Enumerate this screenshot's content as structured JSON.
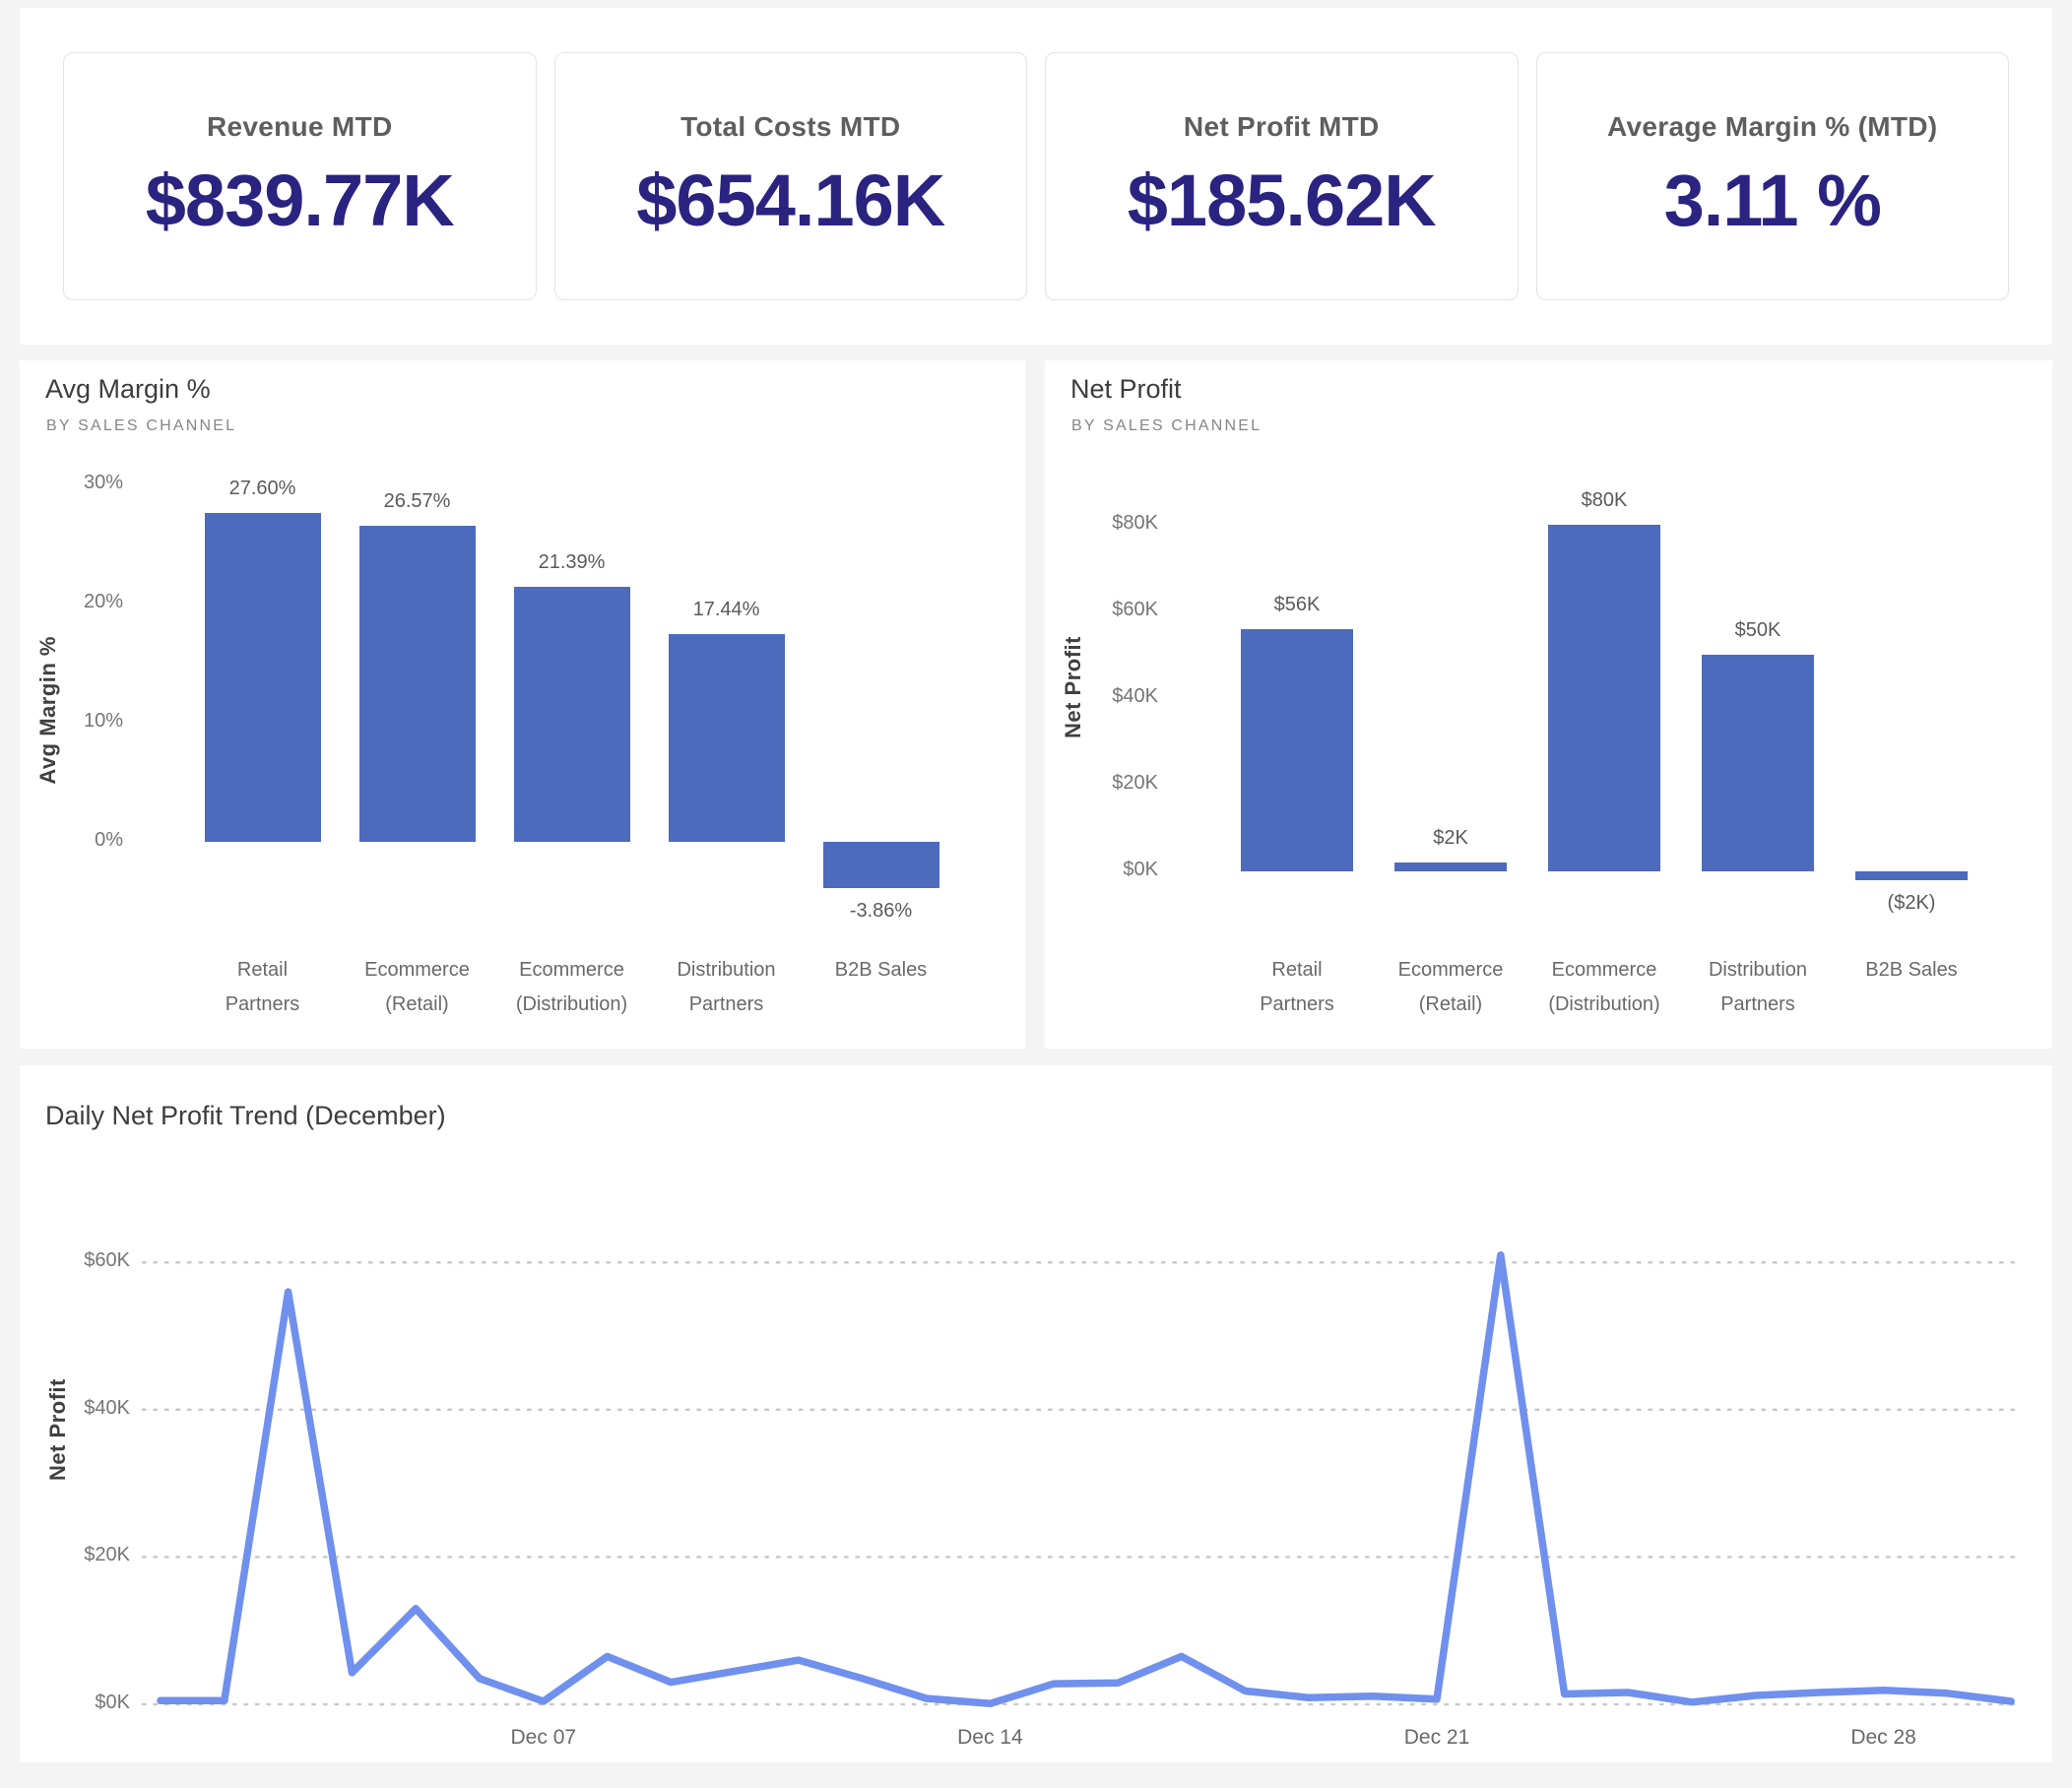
{
  "kpi_cards": [
    {
      "label": "Revenue MTD",
      "value": "$839.77K"
    },
    {
      "label": "Total Costs MTD",
      "value": "$654.16K"
    },
    {
      "label": "Net Profit MTD",
      "value": "$185.62K"
    },
    {
      "label": "Average Margin % (MTD)",
      "value": "3.11 %"
    }
  ],
  "colors": {
    "bar_fill": "#4D6BBC",
    "line_stroke": "#7090EE",
    "kpi_value": "#2A2380",
    "grid_dots": "#C9C9C9",
    "page_background": "#F4F4F4"
  },
  "chart_data": [
    {
      "type": "bar",
      "title": "Avg Margin %",
      "subtitle": "BY SALES CHANNEL",
      "ylabel": "Avg Margin %",
      "categories": [
        "Retail Partners",
        "Ecommerce (Retail)",
        "Ecommerce (Distribution)",
        "Distribution Partners",
        "B2B Sales"
      ],
      "category_lines": [
        [
          "Retail",
          "Partners"
        ],
        [
          "Ecommerce",
          "(Retail)"
        ],
        [
          "Ecommerce",
          "(Distribution)"
        ],
        [
          "Distribution",
          "Partners"
        ],
        [
          "B2B Sales"
        ]
      ],
      "values": [
        27.6,
        26.57,
        21.39,
        17.44,
        -3.86
      ],
      "data_labels": [
        "27.60%",
        "26.57%",
        "21.39%",
        "17.44%",
        "-3.86%"
      ],
      "yticks": [
        0,
        10,
        20,
        30
      ],
      "ytick_labels": [
        "0%",
        "10%",
        "20%",
        "30%"
      ],
      "ylim": [
        -8,
        32
      ],
      "grid": false,
      "legend": false
    },
    {
      "type": "bar",
      "title": "Net Profit",
      "subtitle": "BY SALES CHANNEL",
      "ylabel": "Net Profit",
      "categories": [
        "Retail Partners",
        "Ecommerce (Retail)",
        "Ecommerce (Distribution)",
        "Distribution Partners",
        "B2B Sales"
      ],
      "category_lines": [
        [
          "Retail",
          "Partners"
        ],
        [
          "Ecommerce",
          "(Retail)"
        ],
        [
          "Ecommerce",
          "(Distribution)"
        ],
        [
          "Distribution",
          "Partners"
        ],
        [
          "B2B Sales"
        ]
      ],
      "values": [
        56,
        2,
        80,
        50,
        -2
      ],
      "values_unit": "$K",
      "data_labels": [
        "$56K",
        "$2K",
        "$80K",
        "$50K",
        "($2K)"
      ],
      "yticks": [
        0,
        20,
        40,
        60,
        80
      ],
      "ytick_labels": [
        "$0K",
        "$20K",
        "$40K",
        "$60K",
        "$80K"
      ],
      "ylim": [
        -8,
        88
      ],
      "grid": false,
      "legend": false
    },
    {
      "type": "line",
      "title": "Daily Net Profit Trend (December)",
      "ylabel": "Net Profit",
      "x_unit": "day of December",
      "x": [
        1,
        2,
        3,
        4,
        5,
        6,
        7,
        8,
        9,
        10,
        11,
        12,
        13,
        14,
        15,
        16,
        17,
        18,
        19,
        20,
        21,
        22,
        23,
        24,
        25,
        26,
        27,
        28,
        29,
        30
      ],
      "values": [
        0.5,
        0.5,
        56,
        4.3,
        13,
        3.5,
        0.4,
        6.5,
        3,
        4.5,
        6,
        3.5,
        0.8,
        0.1,
        2.8,
        2.9,
        6.5,
        1.8,
        0.9,
        1.1,
        0.7,
        61,
        1.4,
        1.6,
        0.3,
        1.2,
        1.6,
        1.9,
        1.5,
        0.4
      ],
      "values_unit": "$K",
      "yticks": [
        0,
        20,
        40,
        60
      ],
      "ytick_labels": [
        "$0K",
        "$20K",
        "$40K",
        "$60K"
      ],
      "xticks": [
        7,
        14,
        21,
        28
      ],
      "xtick_labels": [
        "Dec 07",
        "Dec 14",
        "Dec 21",
        "Dec 28"
      ],
      "ylim": [
        0,
        63
      ],
      "grid": "dotted-horizontal",
      "legend": false
    }
  ]
}
